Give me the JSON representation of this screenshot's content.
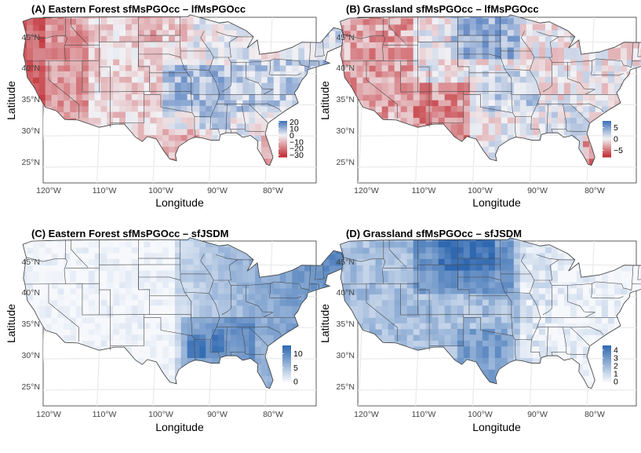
{
  "chart_data": [
    {
      "type": "heatmap",
      "title": "(A) Eastern Forest sfMsPGOcc – lfMsPGOcc",
      "xlabel": "Longitude",
      "ylabel": "Latitude",
      "x_ticks": [
        "120°W",
        "110°W",
        "100°W",
        "90°W",
        "80°W"
      ],
      "y_ticks": [
        "45°N",
        "40°N",
        "35°N",
        "30°N",
        "25°N"
      ],
      "legend": {
        "labels": [
          "20",
          "10",
          "0",
          "−10",
          "−20",
          "−30"
        ],
        "values": [
          20,
          10,
          0,
          -10,
          -20,
          -30
        ],
        "min": -33,
        "max": 22,
        "colors": [
          "#c0282e",
          "#f2f2f5",
          "#3f6fb8"
        ]
      },
      "scheme": "diverging-A"
    },
    {
      "type": "heatmap",
      "title": "(B) Grassland sfMsPGOcc – lfMsPGOcc",
      "xlabel": "Longitude",
      "ylabel": "Latitude",
      "x_ticks": [
        "120°W",
        "110°W",
        "100°W",
        "90°W",
        "80°W"
      ],
      "y_ticks": [
        "45°N",
        "40°N",
        "35°N",
        "30°N",
        "25°N"
      ],
      "legend": {
        "labels": [
          "5",
          "0",
          "−5"
        ],
        "values": [
          5,
          0,
          -5
        ],
        "min": -8,
        "max": 8,
        "colors": [
          "#c0282e",
          "#f2f2f5",
          "#3f6fb8"
        ]
      },
      "scheme": "diverging-B"
    },
    {
      "type": "heatmap",
      "title": "(C) Eastern Forest sfMsPGOcc – sfJSDM",
      "xlabel": "Longitude",
      "ylabel": "Latitude",
      "x_ticks": [
        "120°W",
        "110°W",
        "100°W",
        "90°W",
        "80°W"
      ],
      "y_ticks": [
        "45°N",
        "40°N",
        "35°N",
        "30°N",
        "25°N"
      ],
      "legend": {
        "labels": [
          "10",
          "5",
          "0"
        ],
        "values": [
          10,
          5,
          0
        ],
        "min": 0,
        "max": 13,
        "colors": [
          "#f6f8fc",
          "#2f68b0"
        ]
      },
      "scheme": "sequential-C"
    },
    {
      "type": "heatmap",
      "title": "(D) Grassland sfMsPGOcc – sfJSDM",
      "xlabel": "Longitude",
      "ylabel": "Latitude",
      "x_ticks": [
        "120°W",
        "110°W",
        "100°W",
        "90°W",
        "80°W"
      ],
      "y_ticks": [
        "45°N",
        "40°N",
        "35°N",
        "30°N",
        "25°N"
      ],
      "legend": {
        "labels": [
          "4",
          "3",
          "2",
          "1",
          "0"
        ],
        "values": [
          4,
          3,
          2,
          1,
          0
        ],
        "min": 0,
        "max": 4.6,
        "colors": [
          "#f6f8fc",
          "#2f68b0"
        ]
      },
      "scheme": "sequential-D"
    }
  ]
}
